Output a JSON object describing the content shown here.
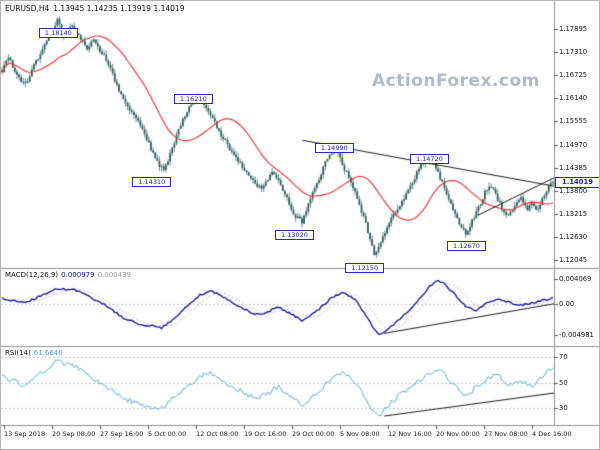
{
  "header": {
    "symbol": "EURUSD,H4",
    "ohlc": "1.13945 1.14235 1.13919 1.14019"
  },
  "watermark": "ActionForex.com",
  "panels": {
    "macd": {
      "name": "MACD(12,26,9)",
      "value_main": "0.000979",
      "value_signal": "0.000439",
      "ticks": [
        {
          "label": "0.004069",
          "v": 0.004069
        },
        {
          "label": "0.00",
          "v": 0
        },
        {
          "label": "-0.004981",
          "v": -0.004981
        }
      ]
    },
    "rsi": {
      "name": "RSI(14)",
      "value": "61.6640",
      "ticks": [
        {
          "label": "70",
          "v": 70
        },
        {
          "label": "50",
          "v": 50
        },
        {
          "label": "30",
          "v": 30
        }
      ]
    }
  },
  "price_axis": {
    "ticks": [
      {
        "label": "1.17895",
        "v": 1.17895
      },
      {
        "label": "1.17310",
        "v": 1.1731
      },
      {
        "label": "1.16725",
        "v": 1.16725
      },
      {
        "label": "1.16140",
        "v": 1.1614
      },
      {
        "label": "1.15555",
        "v": 1.15555
      },
      {
        "label": "1.14970",
        "v": 1.1497
      },
      {
        "label": "1.14385",
        "v": 1.14385
      },
      {
        "label": "1.13800",
        "v": 1.138
      },
      {
        "label": "1.13215",
        "v": 1.13215
      },
      {
        "label": "1.12630",
        "v": 1.1263
      },
      {
        "label": "1.12045",
        "v": 1.12045
      }
    ],
    "current": {
      "label": "1.14019",
      "v": 1.14019
    }
  },
  "time_axis": {
    "labels": [
      "13 Sep 2018",
      "20 Sep 08:00",
      "27 Sep 16:00",
      "5 Oct 00:00",
      "12 Oct 08:00",
      "19 Oct 16:00",
      "29 Oct 00:00",
      "5 Nov 08:00",
      "12 Nov 16:00",
      "20 Nov 00:00",
      "27 Nov 08:00",
      "4 Dec 16:00"
    ]
  },
  "colors": {
    "background": "#ffffff",
    "candle": "#2f6262",
    "ma": "#f03030",
    "macd": "#12129e",
    "macd_signal": "#c4c4c4",
    "rsi": "#5aade0",
    "level_dash": "#c9c9c9",
    "trendline": "#1c1c1c",
    "separator": "#8c9096",
    "axis_tick": "#555555"
  },
  "chart_data": {
    "type": "candlestick",
    "symbol": "EURUSD",
    "timeframe": "H4",
    "title": "EURUSD H4 with MACD(12,26,9) and RSI(14)",
    "ylim_price": [
      1.1185,
      1.186
    ],
    "ylim_macd": [
      -0.00675,
      0.00575
    ],
    "ylim_rsi": [
      17,
      78
    ],
    "price_keypoints": [
      [
        0.0,
        1.1685
      ],
      [
        0.012,
        1.1715
      ],
      [
        0.028,
        1.1672
      ],
      [
        0.042,
        1.1648
      ],
      [
        0.06,
        1.1705
      ],
      [
        0.08,
        1.1755
      ],
      [
        0.092,
        1.1785
      ],
      [
        0.1,
        1.1812
      ],
      [
        0.112,
        1.1768
      ],
      [
        0.126,
        1.1795
      ],
      [
        0.14,
        1.1772
      ],
      [
        0.155,
        1.1742
      ],
      [
        0.168,
        1.1762
      ],
      [
        0.18,
        1.1732
      ],
      [
        0.195,
        1.1695
      ],
      [
        0.21,
        1.1642
      ],
      [
        0.225,
        1.1602
      ],
      [
        0.24,
        1.1572
      ],
      [
        0.252,
        1.1542
      ],
      [
        0.262,
        1.1512
      ],
      [
        0.272,
        1.148
      ],
      [
        0.282,
        1.1452
      ],
      [
        0.292,
        1.1433
      ],
      [
        0.302,
        1.1462
      ],
      [
        0.314,
        1.1508
      ],
      [
        0.326,
        1.1556
      ],
      [
        0.34,
        1.1592
      ],
      [
        0.355,
        1.1618
      ],
      [
        0.37,
        1.1588
      ],
      [
        0.384,
        1.1556
      ],
      [
        0.398,
        1.1522
      ],
      [
        0.41,
        1.1496
      ],
      [
        0.422,
        1.1468
      ],
      [
        0.435,
        1.1443
      ],
      [
        0.448,
        1.142
      ],
      [
        0.46,
        1.1398
      ],
      [
        0.472,
        1.138
      ],
      [
        0.482,
        1.1408
      ],
      [
        0.492,
        1.1432
      ],
      [
        0.502,
        1.141
      ],
      [
        0.512,
        1.1378
      ],
      [
        0.522,
        1.1342
      ],
      [
        0.534,
        1.1312
      ],
      [
        0.545,
        1.1303
      ],
      [
        0.558,
        1.1352
      ],
      [
        0.572,
        1.1402
      ],
      [
        0.585,
        1.1446
      ],
      [
        0.605,
        1.1492
      ],
      [
        0.618,
        1.1446
      ],
      [
        0.632,
        1.1406
      ],
      [
        0.645,
        1.1362
      ],
      [
        0.658,
        1.1306
      ],
      [
        0.668,
        1.1252
      ],
      [
        0.676,
        1.1218
      ],
      [
        0.69,
        1.1258
      ],
      [
        0.702,
        1.1296
      ],
      [
        0.715,
        1.133
      ],
      [
        0.728,
        1.1358
      ],
      [
        0.74,
        1.139
      ],
      [
        0.752,
        1.1424
      ],
      [
        0.765,
        1.1455
      ],
      [
        0.778,
        1.147
      ],
      [
        0.79,
        1.1432
      ],
      [
        0.802,
        1.1392
      ],
      [
        0.815,
        1.1346
      ],
      [
        0.828,
        1.1302
      ],
      [
        0.842,
        1.127
      ],
      [
        0.856,
        1.131
      ],
      [
        0.87,
        1.1356
      ],
      [
        0.882,
        1.1392
      ],
      [
        0.894,
        1.1378
      ],
      [
        0.906,
        1.134
      ],
      [
        0.918,
        1.1318
      ],
      [
        0.93,
        1.1342
      ],
      [
        0.942,
        1.1362
      ],
      [
        0.952,
        1.1332
      ],
      [
        0.962,
        1.1348
      ],
      [
        0.972,
        1.1332
      ],
      [
        0.982,
        1.1366
      ],
      [
        0.992,
        1.139
      ],
      [
        1.0,
        1.1402
      ]
    ],
    "macd_keypoints": [
      [
        0.0,
        0.001
      ],
      [
        0.04,
        0.0002
      ],
      [
        0.07,
        0.0014
      ],
      [
        0.1,
        0.0026
      ],
      [
        0.13,
        0.0024
      ],
      [
        0.16,
        0.0012
      ],
      [
        0.19,
        -0.0002
      ],
      [
        0.22,
        -0.0022
      ],
      [
        0.25,
        -0.0032
      ],
      [
        0.29,
        -0.0038
      ],
      [
        0.31,
        -0.0024
      ],
      [
        0.34,
        0.0
      ],
      [
        0.36,
        0.0016
      ],
      [
        0.38,
        0.0022
      ],
      [
        0.41,
        0.0008
      ],
      [
        0.44,
        -0.0008
      ],
      [
        0.46,
        -0.0016
      ],
      [
        0.48,
        -0.0013
      ],
      [
        0.5,
        -0.0004
      ],
      [
        0.52,
        -0.0013
      ],
      [
        0.545,
        -0.0026
      ],
      [
        0.57,
        -0.0012
      ],
      [
        0.6,
        0.0012
      ],
      [
        0.62,
        0.002
      ],
      [
        0.645,
        0.0004
      ],
      [
        0.66,
        -0.0018
      ],
      [
        0.675,
        -0.004
      ],
      [
        0.685,
        -0.0049
      ],
      [
        0.7,
        -0.0041
      ],
      [
        0.72,
        -0.0025
      ],
      [
        0.74,
        -0.0008
      ],
      [
        0.76,
        0.0012
      ],
      [
        0.775,
        0.0028
      ],
      [
        0.79,
        0.004
      ],
      [
        0.803,
        0.0033
      ],
      [
        0.82,
        0.0018
      ],
      [
        0.84,
        -0.0002
      ],
      [
        0.86,
        -0.001
      ],
      [
        0.88,
        0.0002
      ],
      [
        0.9,
        0.001
      ],
      [
        0.92,
        0.0004
      ],
      [
        0.94,
        -0.0002
      ],
      [
        0.96,
        0.0002
      ],
      [
        0.98,
        0.0007
      ],
      [
        1.0,
        0.001
      ]
    ],
    "rsi_keypoints": [
      [
        0.0,
        55
      ],
      [
        0.04,
        48
      ],
      [
        0.07,
        58
      ],
      [
        0.1,
        67
      ],
      [
        0.13,
        63
      ],
      [
        0.16,
        55
      ],
      [
        0.19,
        47
      ],
      [
        0.22,
        38
      ],
      [
        0.25,
        33
      ],
      [
        0.29,
        30
      ],
      [
        0.31,
        39
      ],
      [
        0.34,
        48
      ],
      [
        0.36,
        55
      ],
      [
        0.38,
        58
      ],
      [
        0.41,
        49
      ],
      [
        0.44,
        42
      ],
      [
        0.46,
        38
      ],
      [
        0.48,
        41
      ],
      [
        0.5,
        47
      ],
      [
        0.52,
        41
      ],
      [
        0.545,
        33
      ],
      [
        0.57,
        42
      ],
      [
        0.6,
        54
      ],
      [
        0.62,
        58
      ],
      [
        0.645,
        48
      ],
      [
        0.66,
        38
      ],
      [
        0.675,
        28
      ],
      [
        0.685,
        25
      ],
      [
        0.7,
        32
      ],
      [
        0.72,
        40
      ],
      [
        0.74,
        46
      ],
      [
        0.76,
        52
      ],
      [
        0.775,
        57
      ],
      [
        0.79,
        62
      ],
      [
        0.803,
        57
      ],
      [
        0.82,
        48
      ],
      [
        0.84,
        40
      ],
      [
        0.86,
        46
      ],
      [
        0.88,
        53
      ],
      [
        0.9,
        56
      ],
      [
        0.92,
        48
      ],
      [
        0.94,
        52
      ],
      [
        0.96,
        47
      ],
      [
        0.98,
        55
      ],
      [
        1.0,
        61.7
      ]
    ],
    "annotations": [
      {
        "label": "1.18140",
        "x": 0.101,
        "p": 1.1782
      },
      {
        "label": "1.16210",
        "x": 0.345,
        "p": 1.1615
      },
      {
        "label": "1.14310",
        "x": 0.27,
        "p": 1.1405
      },
      {
        "label": "1.14990",
        "x": 0.6,
        "p": 1.1491
      },
      {
        "label": "1.14720",
        "x": 0.772,
        "p": 1.1463
      },
      {
        "label": "1.13020",
        "x": 0.528,
        "p": 1.1271
      },
      {
        "label": "1.12150",
        "x": 0.655,
        "p": 1.1188
      },
      {
        "label": "1.12670",
        "x": 0.839,
        "p": 1.1243
      }
    ],
    "trendlines": [
      {
        "panel": "price",
        "x1": 0.545,
        "v1": 1.1508,
        "x2": 1.0,
        "v2": 1.1392
      },
      {
        "panel": "price",
        "x1": 0.862,
        "v1": 1.1318,
        "x2": 1.0,
        "v2": 1.1413
      },
      {
        "panel": "macd",
        "x1": 0.693,
        "v1": -0.0047,
        "x2": 1.0,
        "v2": 0.0001
      },
      {
        "panel": "rsi",
        "x1": 0.693,
        "v1": 24,
        "x2": 1.0,
        "v2": 42
      }
    ]
  }
}
